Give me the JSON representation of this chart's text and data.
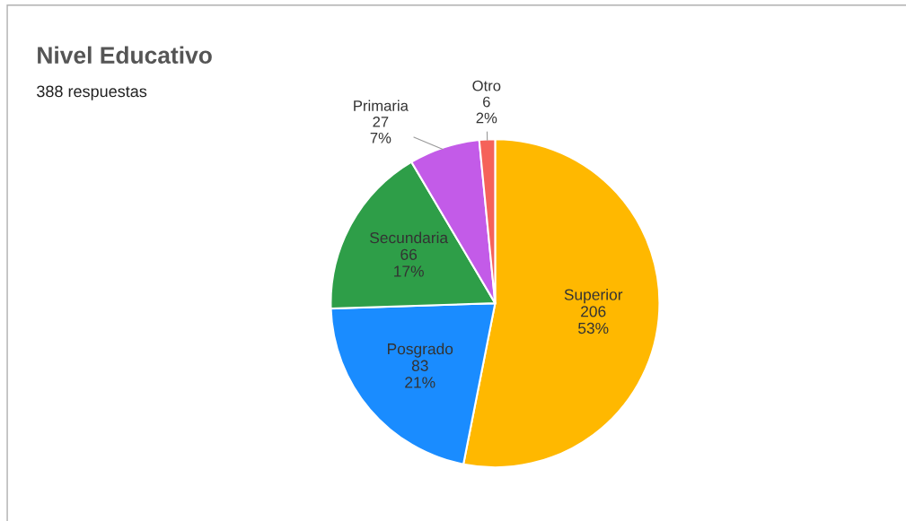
{
  "chart_data": {
    "type": "pie",
    "title": "Nivel Educativo",
    "subtitle": "388 respuestas",
    "categories": [
      "Superior",
      "Posgrado",
      "Secundaria",
      "Primaria",
      "Otro"
    ],
    "values": [
      206,
      83,
      66,
      27,
      6
    ],
    "value_labels": [
      "206\n53%",
      "83\n21%",
      "66\n17%",
      "27\n7%",
      "6\n2%"
    ],
    "colors": [
      "#ffb800",
      "#1a8cff",
      "#2e9e48",
      "#c35be8",
      "#f5625a"
    ],
    "legend": false
  }
}
